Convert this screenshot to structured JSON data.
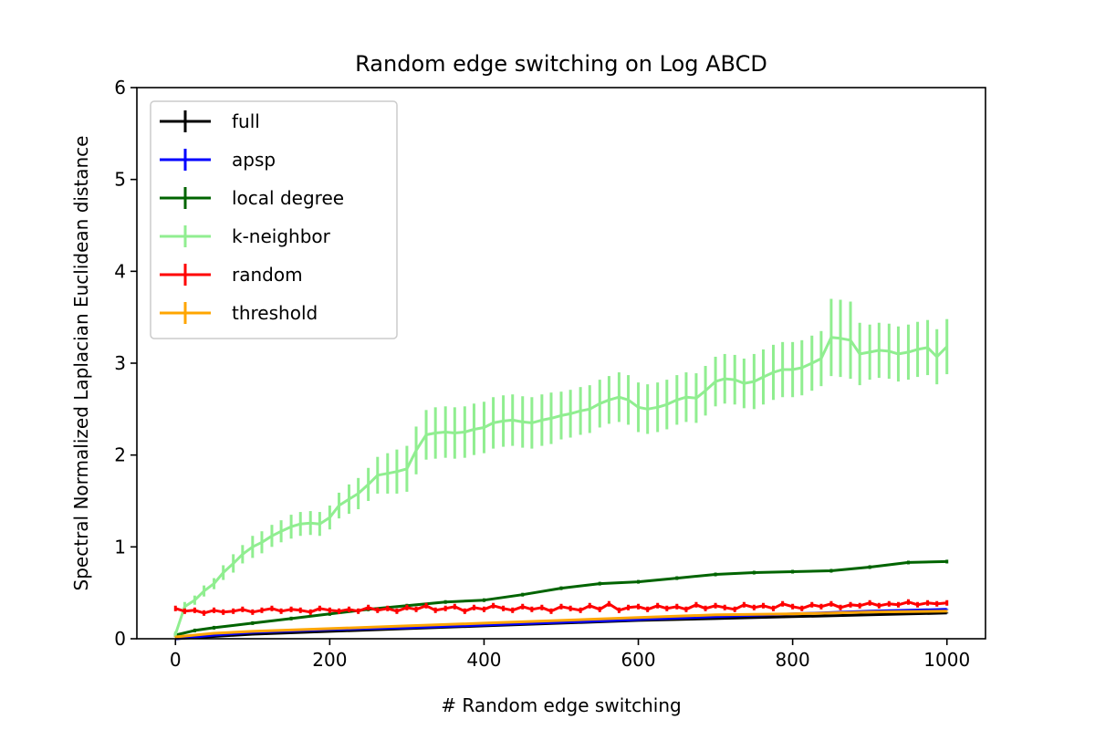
{
  "chart_data": {
    "type": "line",
    "title": "Random edge switching on Log ABCD",
    "xlabel": "# Random edge switching",
    "ylabel": "Spectral Normalized Laplacian Euclidean distance",
    "xlim": [
      -50,
      1050
    ],
    "ylim": [
      0,
      6
    ],
    "xticks": [
      0,
      200,
      400,
      600,
      800,
      1000
    ],
    "yticks": [
      0,
      1,
      2,
      3,
      4,
      5,
      6
    ],
    "grid": false,
    "legend_position": "top-left",
    "series": [
      {
        "name": "full",
        "color": "#000000",
        "x": [
          0,
          100,
          200,
          300,
          400,
          500,
          600,
          700,
          800,
          900,
          1000
        ],
        "y": [
          0.0,
          0.05,
          0.08,
          0.11,
          0.14,
          0.17,
          0.2,
          0.22,
          0.24,
          0.26,
          0.28
        ],
        "err": [
          0.005,
          0.005,
          0.005,
          0.005,
          0.005,
          0.005,
          0.005,
          0.005,
          0.005,
          0.005,
          0.005
        ]
      },
      {
        "name": "apsp",
        "color": "#0000ff",
        "x": [
          0,
          50,
          100,
          200,
          300,
          400,
          500,
          600,
          700,
          800,
          900,
          1000
        ],
        "y": [
          0.0,
          0.04,
          0.07,
          0.1,
          0.12,
          0.15,
          0.18,
          0.21,
          0.24,
          0.27,
          0.3,
          0.32
        ],
        "err": [
          0.005,
          0.005,
          0.005,
          0.005,
          0.005,
          0.005,
          0.005,
          0.005,
          0.005,
          0.005,
          0.005,
          0.005
        ]
      },
      {
        "name": "local degree",
        "color": "#006400",
        "x": [
          0,
          25,
          50,
          100,
          150,
          200,
          250,
          300,
          350,
          400,
          450,
          500,
          550,
          600,
          650,
          700,
          750,
          800,
          850,
          900,
          950,
          1000
        ],
        "y": [
          0.04,
          0.09,
          0.12,
          0.17,
          0.22,
          0.27,
          0.32,
          0.36,
          0.4,
          0.42,
          0.48,
          0.55,
          0.6,
          0.62,
          0.66,
          0.7,
          0.72,
          0.73,
          0.74,
          0.78,
          0.83,
          0.84
        ],
        "err": [
          0.02,
          0.02,
          0.02,
          0.02,
          0.02,
          0.02,
          0.02,
          0.02,
          0.02,
          0.02,
          0.02,
          0.02,
          0.02,
          0.02,
          0.02,
          0.02,
          0.02,
          0.02,
          0.02,
          0.02,
          0.02,
          0.02
        ]
      },
      {
        "name": "k-neighbor",
        "color": "#90ee90",
        "x": [
          0,
          12,
          25,
          37,
          50,
          62,
          75,
          87,
          100,
          112,
          125,
          137,
          150,
          162,
          175,
          187,
          200,
          212,
          225,
          237,
          250,
          262,
          275,
          287,
          300,
          312,
          325,
          337,
          350,
          362,
          375,
          387,
          400,
          412,
          425,
          437,
          450,
          462,
          475,
          487,
          500,
          512,
          525,
          537,
          550,
          562,
          575,
          587,
          600,
          612,
          625,
          637,
          650,
          662,
          675,
          687,
          700,
          712,
          725,
          737,
          750,
          762,
          775,
          787,
          800,
          812,
          825,
          837,
          850,
          862,
          875,
          887,
          900,
          912,
          925,
          937,
          950,
          962,
          975,
          987,
          1000
        ],
        "y": [
          0.05,
          0.35,
          0.42,
          0.52,
          0.6,
          0.72,
          0.82,
          0.92,
          1.0,
          1.05,
          1.12,
          1.17,
          1.22,
          1.25,
          1.26,
          1.25,
          1.32,
          1.45,
          1.52,
          1.58,
          1.68,
          1.78,
          1.8,
          1.82,
          1.85,
          2.05,
          2.22,
          2.24,
          2.25,
          2.24,
          2.25,
          2.28,
          2.3,
          2.35,
          2.37,
          2.38,
          2.36,
          2.35,
          2.38,
          2.4,
          2.43,
          2.45,
          2.48,
          2.5,
          2.56,
          2.6,
          2.63,
          2.6,
          2.52,
          2.5,
          2.52,
          2.55,
          2.6,
          2.63,
          2.62,
          2.7,
          2.8,
          2.83,
          2.82,
          2.78,
          2.8,
          2.85,
          2.9,
          2.93,
          2.93,
          2.95,
          3.0,
          3.05,
          3.28,
          3.27,
          3.25,
          3.1,
          3.12,
          3.14,
          3.13,
          3.1,
          3.12,
          3.15,
          3.17,
          3.07,
          3.18
        ],
        "err": [
          0.03,
          0.05,
          0.05,
          0.06,
          0.06,
          0.08,
          0.1,
          0.1,
          0.12,
          0.12,
          0.12,
          0.12,
          0.13,
          0.13,
          0.13,
          0.13,
          0.13,
          0.14,
          0.16,
          0.17,
          0.18,
          0.2,
          0.22,
          0.24,
          0.25,
          0.26,
          0.27,
          0.28,
          0.28,
          0.28,
          0.28,
          0.28,
          0.28,
          0.28,
          0.28,
          0.28,
          0.28,
          0.28,
          0.28,
          0.28,
          0.26,
          0.26,
          0.26,
          0.26,
          0.26,
          0.26,
          0.27,
          0.27,
          0.27,
          0.27,
          0.27,
          0.27,
          0.27,
          0.27,
          0.27,
          0.27,
          0.27,
          0.27,
          0.27,
          0.27,
          0.3,
          0.3,
          0.3,
          0.3,
          0.3,
          0.3,
          0.3,
          0.3,
          0.42,
          0.42,
          0.42,
          0.34,
          0.3,
          0.3,
          0.3,
          0.3,
          0.3,
          0.3,
          0.3,
          0.3,
          0.3
        ]
      },
      {
        "name": "random",
        "color": "#ff0000",
        "x": [
          0,
          12,
          25,
          37,
          50,
          62,
          75,
          87,
          100,
          112,
          125,
          137,
          150,
          162,
          175,
          187,
          200,
          212,
          225,
          237,
          250,
          262,
          275,
          287,
          300,
          312,
          325,
          337,
          350,
          362,
          375,
          387,
          400,
          412,
          425,
          437,
          450,
          462,
          475,
          487,
          500,
          512,
          525,
          537,
          550,
          562,
          575,
          587,
          600,
          612,
          625,
          637,
          650,
          662,
          675,
          687,
          700,
          712,
          725,
          737,
          750,
          762,
          775,
          787,
          800,
          812,
          825,
          837,
          850,
          862,
          875,
          887,
          900,
          912,
          925,
          937,
          950,
          962,
          975,
          987,
          1000
        ],
        "y": [
          0.33,
          0.3,
          0.31,
          0.28,
          0.31,
          0.29,
          0.3,
          0.32,
          0.29,
          0.31,
          0.33,
          0.3,
          0.32,
          0.31,
          0.29,
          0.33,
          0.31,
          0.3,
          0.32,
          0.3,
          0.34,
          0.31,
          0.33,
          0.3,
          0.34,
          0.32,
          0.36,
          0.31,
          0.33,
          0.35,
          0.3,
          0.34,
          0.32,
          0.36,
          0.33,
          0.31,
          0.35,
          0.32,
          0.34,
          0.3,
          0.35,
          0.33,
          0.31,
          0.36,
          0.32,
          0.38,
          0.31,
          0.34,
          0.35,
          0.32,
          0.36,
          0.33,
          0.35,
          0.32,
          0.37,
          0.33,
          0.36,
          0.34,
          0.32,
          0.37,
          0.34,
          0.36,
          0.33,
          0.38,
          0.35,
          0.33,
          0.37,
          0.35,
          0.38,
          0.34,
          0.37,
          0.36,
          0.39,
          0.36,
          0.38,
          0.37,
          0.4,
          0.37,
          0.39,
          0.38,
          0.39
        ],
        "err": [
          0.03,
          0.03,
          0.03,
          0.03,
          0.03,
          0.03,
          0.03,
          0.03,
          0.03,
          0.03,
          0.03,
          0.03,
          0.03,
          0.03,
          0.03,
          0.03,
          0.03,
          0.03,
          0.03,
          0.03,
          0.03,
          0.03,
          0.03,
          0.03,
          0.03,
          0.03,
          0.03,
          0.03,
          0.03,
          0.03,
          0.03,
          0.03,
          0.03,
          0.03,
          0.03,
          0.03,
          0.03,
          0.03,
          0.03,
          0.03,
          0.03,
          0.03,
          0.03,
          0.03,
          0.03,
          0.03,
          0.03,
          0.03,
          0.03,
          0.03,
          0.03,
          0.03,
          0.03,
          0.03,
          0.03,
          0.03,
          0.03,
          0.03,
          0.03,
          0.03,
          0.03,
          0.03,
          0.03,
          0.03,
          0.03,
          0.03,
          0.03,
          0.03,
          0.03,
          0.03,
          0.03,
          0.03,
          0.03,
          0.03,
          0.03,
          0.03,
          0.03,
          0.03,
          0.03,
          0.03,
          0.03
        ]
      },
      {
        "name": "threshold",
        "color": "#ffa500",
        "x": [
          0,
          50,
          100,
          200,
          300,
          400,
          500,
          600,
          700,
          800,
          900,
          1000
        ],
        "y": [
          0.02,
          0.06,
          0.08,
          0.11,
          0.14,
          0.17,
          0.2,
          0.23,
          0.26,
          0.27,
          0.29,
          0.3
        ],
        "err": [
          0.005,
          0.005,
          0.005,
          0.005,
          0.005,
          0.005,
          0.005,
          0.005,
          0.005,
          0.005,
          0.005,
          0.005
        ]
      }
    ]
  }
}
